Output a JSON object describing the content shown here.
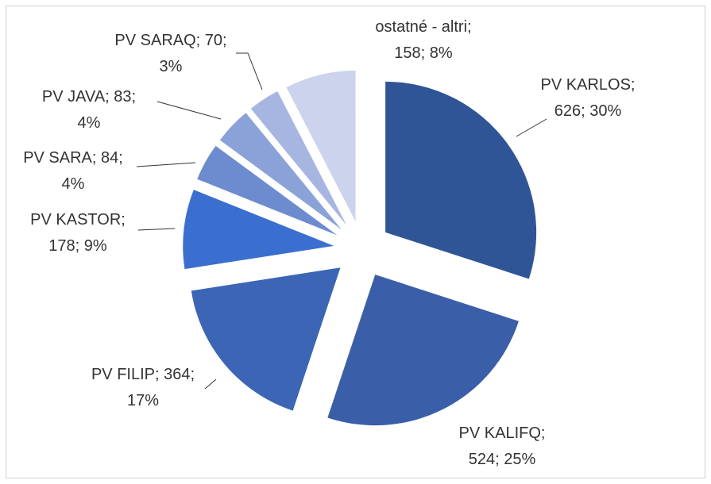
{
  "chart_data": {
    "type": "pie",
    "values": [
      626,
      524,
      364,
      178,
      84,
      83,
      70,
      158
    ],
    "value_labels": [
      "PV KARLOS;\n626; 30%",
      "PV KALIFQ;\n524; 25%",
      "PV FILIP; 364;\n17%",
      "PV KASTOR;\n178; 9%",
      "PV SARA; 84;\n4%",
      "PV JAVA; 83;\n4%",
      "PV SARAQ; 70;\n3%",
      "ostatné - altri;\n158; 8%"
    ],
    "colors": [
      "#2f5597",
      "#3a5ea8",
      "#3c65b6",
      "#3a6fcf",
      "#6c8ccf",
      "#8ba2d8",
      "#a6b6e1",
      "#cbd4ec"
    ]
  }
}
